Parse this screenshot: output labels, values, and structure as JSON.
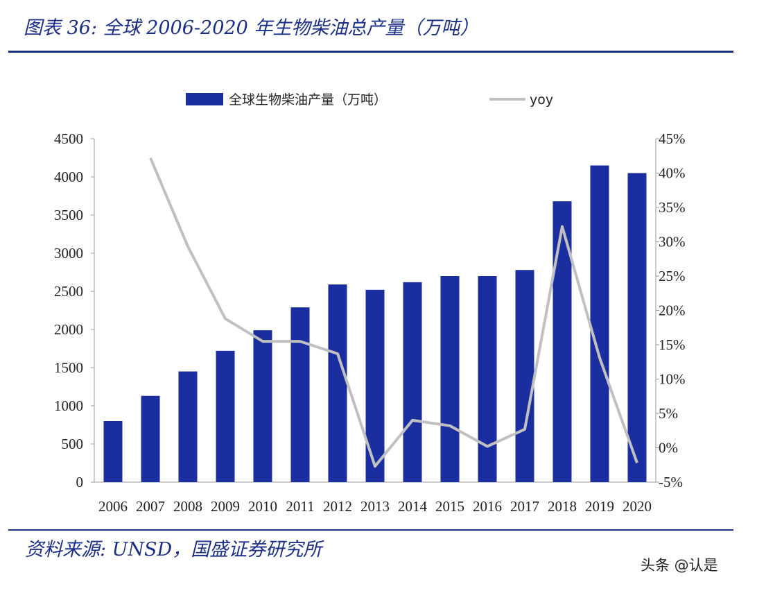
{
  "figure": {
    "title": "图表 36: 全球 2006-2020 年生物柴油总产量（万吨）",
    "source": "资料来源: UNSD，国盛证券研究所",
    "watermark": "头条 @认是"
  },
  "colors": {
    "title": "#1b2f8a",
    "bar": "#1a2ea0",
    "line": "#c0c0c0",
    "rule": "#1b2f8a"
  },
  "chart_data": {
    "type": "bar",
    "categories": [
      "2006",
      "2007",
      "2008",
      "2009",
      "2010",
      "2011",
      "2012",
      "2013",
      "2014",
      "2015",
      "2016",
      "2017",
      "2018",
      "2019",
      "2020"
    ],
    "series": [
      {
        "name": "全球生物柴油产量（万吨）",
        "kind": "bar",
        "axis": "left",
        "values": [
          800,
          1130,
          1450,
          1720,
          1990,
          2290,
          2590,
          2520,
          2620,
          2700,
          2700,
          2780,
          3680,
          4150,
          4050
        ]
      },
      {
        "name": "yoy",
        "kind": "line",
        "axis": "right",
        "values": [
          null,
          42.2,
          29.3,
          18.8,
          15.5,
          15.5,
          13.7,
          -2.7,
          4.0,
          3.2,
          0.2,
          2.7,
          32.2,
          13.1,
          -2.2
        ]
      }
    ],
    "y_left": {
      "ylim": [
        0,
        4500
      ],
      "ticks": [
        0,
        500,
        1000,
        1500,
        2000,
        2500,
        3000,
        3500,
        4000,
        4500
      ],
      "tick_labels": [
        "0",
        "500",
        "1000",
        "1500",
        "2000",
        "2500",
        "3000",
        "3500",
        "4000",
        "4500"
      ]
    },
    "y_right": {
      "ylim": [
        -5,
        45
      ],
      "ticks": [
        -5,
        0,
        5,
        10,
        15,
        20,
        25,
        30,
        35,
        40,
        45
      ],
      "tick_labels": [
        "-5%",
        "0%",
        "5%",
        "10%",
        "15%",
        "20%",
        "25%",
        "30%",
        "35%",
        "40%",
        "45%"
      ]
    },
    "grid": false,
    "legend_position": "top"
  }
}
